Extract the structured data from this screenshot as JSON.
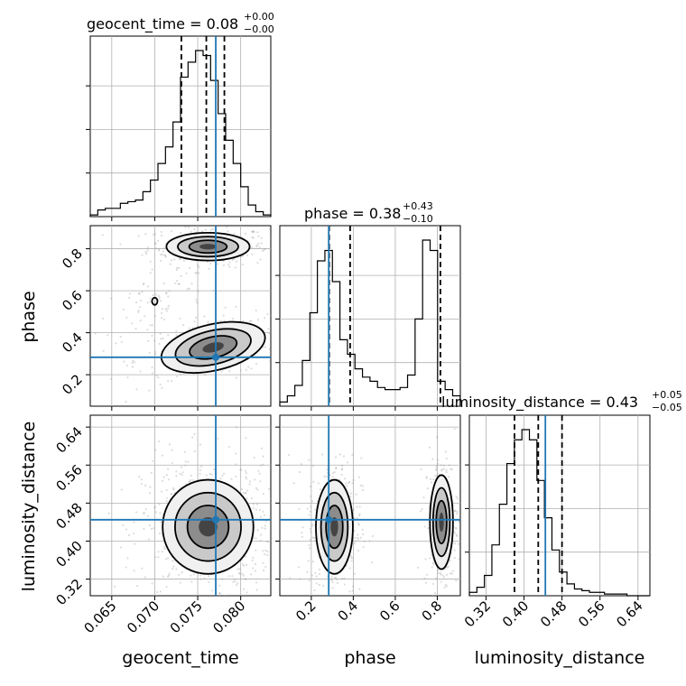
{
  "chart_data": {
    "type": "corner",
    "parameters": [
      {
        "name": "geocent_time",
        "axis_label": "geocent_time",
        "title_prefix": "geocent_time = ",
        "median": "0.08",
        "upper_err": "+0.00",
        "lower_err": "−0.00",
        "range": [
          0.0625,
          0.0835
        ],
        "ticks": [
          "0.065",
          "0.070",
          "0.075",
          "0.080"
        ],
        "truth": 0.0771,
        "quantiles": [
          0.0731,
          0.076,
          0.0781
        ],
        "hist": {
          "edges_start": 0.0625,
          "bin_width": 0.000875,
          "counts": [
            1,
            4,
            5,
            5,
            8,
            9,
            10,
            15,
            22,
            32,
            42,
            57,
            84,
            93,
            100,
            97,
            82,
            62,
            46,
            32,
            18,
            7,
            3,
            1
          ]
        }
      },
      {
        "name": "phase",
        "axis_label": "phase",
        "title_prefix": "phase = ",
        "median": "0.38",
        "upper_err": "+0.43",
        "lower_err": "−0.10",
        "range": [
          0.05,
          0.91
        ],
        "ticks": [
          "0.2",
          "0.4",
          "0.6",
          "0.8"
        ],
        "truth": 0.283,
        "quantiles": [
          0.285,
          0.385,
          0.815
        ],
        "hist": {
          "edges_start": 0.05,
          "bin_width": 0.0358,
          "counts": [
            2,
            5,
            10,
            22,
            45,
            70,
            75,
            60,
            32,
            25,
            18,
            14,
            12,
            9,
            8,
            8,
            9,
            15,
            42,
            80,
            75,
            12,
            8,
            5
          ]
        }
      },
      {
        "name": "luminosity_distance",
        "axis_label": "luminosity_distance",
        "title_prefix": "luminosity_distance = ",
        "median": "0.43",
        "upper_err": "+0.05",
        "lower_err": "−0.05",
        "range": [
          0.285,
          0.665
        ],
        "ticks": [
          "0.32",
          "0.40",
          "0.48",
          "0.56",
          "0.64"
        ],
        "truth": 0.445,
        "quantiles": [
          0.38,
          0.43,
          0.48
        ],
        "hist": {
          "edges_start": 0.285,
          "bin_width": 0.0158,
          "counts": [
            2,
            5,
            12,
            30,
            54,
            78,
            92,
            98,
            92,
            68,
            46,
            27,
            14,
            7,
            4,
            3,
            2,
            2,
            1,
            1,
            1,
            0,
            0,
            0
          ]
        }
      }
    ],
    "pairs": [
      {
        "x_param": "geocent_time",
        "y_param": "phase",
        "truth": [
          0.0771,
          0.283
        ],
        "peaks": [
          {
            "center": [
              0.0762,
              0.81
            ],
            "sd": [
              0.0022,
              0.03
            ],
            "rho": 0.0,
            "weight": 0.45
          },
          {
            "center": [
              0.0768,
              0.33
            ],
            "sd": [
              0.0028,
              0.05
            ],
            "rho": 0.4,
            "weight": 0.45
          },
          {
            "center": [
              0.07,
              0.55
            ],
            "sd": [
              0.002,
              0.06
            ],
            "rho": 0.5,
            "weight": 0.1
          }
        ]
      },
      {
        "x_param": "geocent_time",
        "y_param": "luminosity_distance",
        "truth": [
          0.0771,
          0.445
        ],
        "peaks": [
          {
            "center": [
              0.0762,
              0.43
            ],
            "sd": [
              0.0024,
              0.045
            ],
            "rho": 0.0,
            "weight": 1.0
          }
        ]
      },
      {
        "x_param": "phase",
        "y_param": "luminosity_distance",
        "truth": [
          0.283,
          0.445
        ],
        "peaks": [
          {
            "center": [
              0.31,
              0.43
            ],
            "sd": [
              0.04,
              0.045
            ],
            "rho": 0.0,
            "weight": 0.6
          },
          {
            "center": [
              0.82,
              0.44
            ],
            "sd": [
              0.025,
              0.045
            ],
            "rho": 0.0,
            "weight": 0.4
          }
        ]
      }
    ],
    "quantile_levels": [
      0.16,
      0.5,
      0.84
    ],
    "colors": {
      "truth": "#1f77b4",
      "contour": "#000000",
      "sample": "#9a9a9a",
      "grid": "#b0b0b0"
    }
  }
}
